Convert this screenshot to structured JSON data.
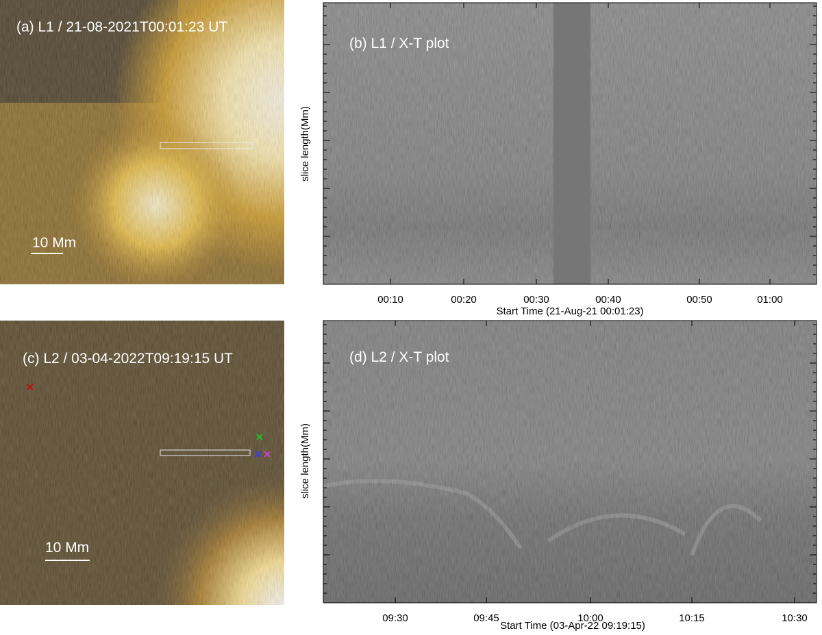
{
  "panels": [
    {
      "label": "(a) L1 / 21-08-2021T00:01:23 UT",
      "scale_bar": "10 Mm"
    },
    {
      "label": "(b) L1 / X-T plot",
      "x_axis_label": "Start Time (21-Aug-21 00:01:23)",
      "y_axis_label": "slice length(Mm)",
      "x_tick_labels": [
        "00:10",
        "00:20",
        "00:30",
        "00:40",
        "00:50",
        "01:00"
      ]
    },
    {
      "label": "(c) L2 / 03-04-2022T09:19:15 UT",
      "scale_bar": "10 Mm"
    },
    {
      "label": "(d) L2 / X-T plot",
      "x_axis_label": "Start Time (03-Apr-22 09:19:15)",
      "y_axis_label": "slice length(Mm)",
      "x_tick_labels": [
        "09:30",
        "09:45",
        "10:00",
        "10:15",
        "10:30"
      ]
    }
  ]
}
